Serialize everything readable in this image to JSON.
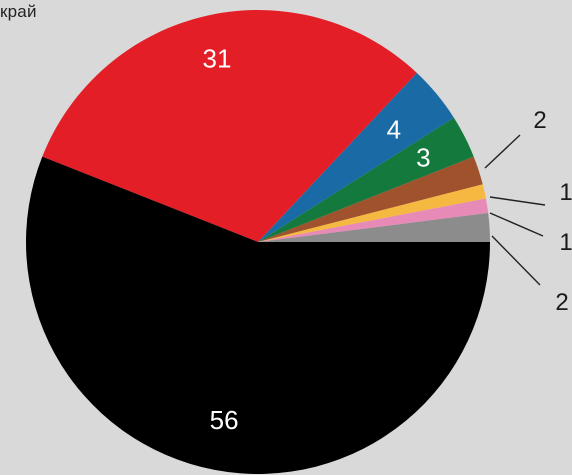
{
  "chart_data": {
    "type": "pie",
    "title": "край",
    "slices": [
      {
        "value": 56,
        "label": "56",
        "color": "#000000"
      },
      {
        "value": 31,
        "label": "31",
        "color": "#e41e26"
      },
      {
        "value": 4,
        "label": "4",
        "color": "#1a6aa6"
      },
      {
        "value": 3,
        "label": "3",
        "color": "#13793d"
      },
      {
        "value": 2,
        "label": "2",
        "color": "#a0522d"
      },
      {
        "value": 1,
        "label": "1",
        "color": "#f5b942"
      },
      {
        "value": 1,
        "label": "1",
        "color": "#e88ab8"
      },
      {
        "value": 2,
        "label": "2",
        "color": "#8c8c8c"
      }
    ]
  }
}
